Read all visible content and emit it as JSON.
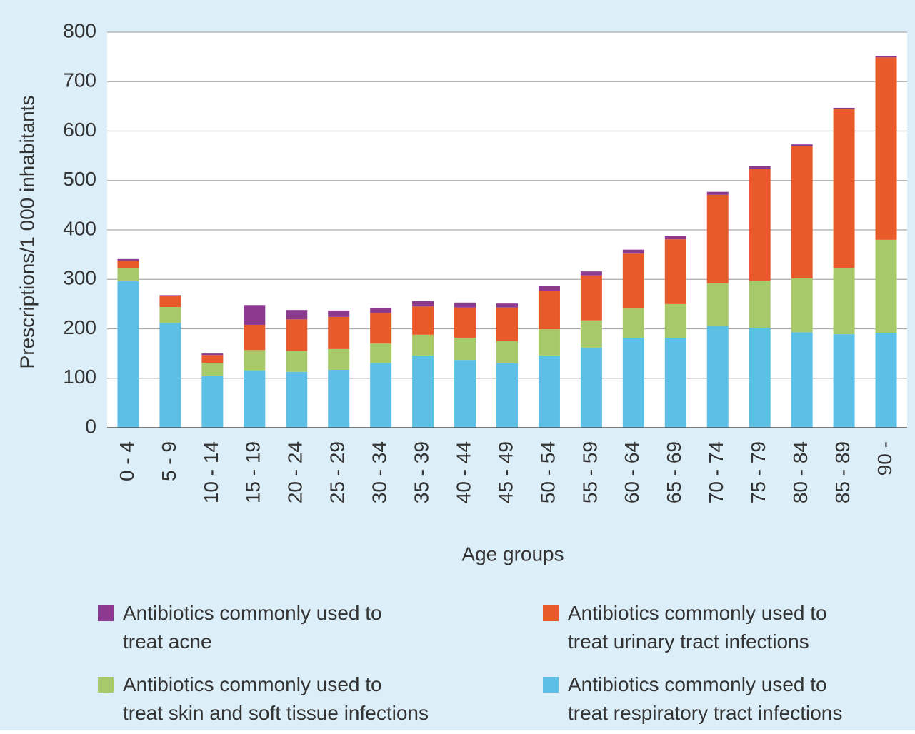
{
  "chart_data": {
    "type": "stacked_bar",
    "y_label": "Prescriptions/1 000 inhabitants",
    "x_label": "Age groups",
    "categories": [
      "0 - 4",
      "5 - 9",
      "10 - 14",
      "15 - 19",
      "20 - 24",
      "25 - 29",
      "30 - 34",
      "35 - 39",
      "40 - 44",
      "45 - 49",
      "50 - 54",
      "55 - 59",
      "60 - 64",
      "65 - 69",
      "70 - 74",
      "75 - 79",
      "80 - 84",
      "85 - 89",
      "90 -"
    ],
    "series": [
      {
        "name": "Antibiotics commonly used to treat respiratory tract infections",
        "color": "#5bbfe6",
        "values": [
          296,
          212,
          104,
          116,
          113,
          117,
          131,
          146,
          137,
          130,
          146,
          162,
          182,
          182,
          206,
          202,
          193,
          189,
          192
        ]
      },
      {
        "name": "Antibiotics commonly used to treat skin and soft tissue infections",
        "color": "#a8c96a",
        "values": [
          26,
          32,
          27,
          41,
          42,
          42,
          39,
          42,
          45,
          45,
          53,
          55,
          59,
          68,
          86,
          95,
          109,
          134,
          188
        ]
      },
      {
        "name": "Antibiotics commonly used to treat urinary tract infections",
        "color": "#e85a2a",
        "values": [
          16,
          23,
          16,
          51,
          64,
          65,
          62,
          57,
          61,
          68,
          78,
          91,
          111,
          131,
          179,
          226,
          267,
          321,
          369
        ]
      },
      {
        "name": "Antibiotics commonly used to treat acne",
        "color": "#8b3a8f",
        "values": [
          3,
          1,
          3,
          40,
          19,
          13,
          10,
          11,
          10,
          8,
          10,
          8,
          8,
          7,
          6,
          6,
          4,
          3,
          3
        ]
      }
    ],
    "ylim": [
      0,
      800
    ],
    "yticks": [
      0,
      100,
      200,
      300,
      400,
      500,
      600,
      700,
      800
    ],
    "grid": true
  }
}
